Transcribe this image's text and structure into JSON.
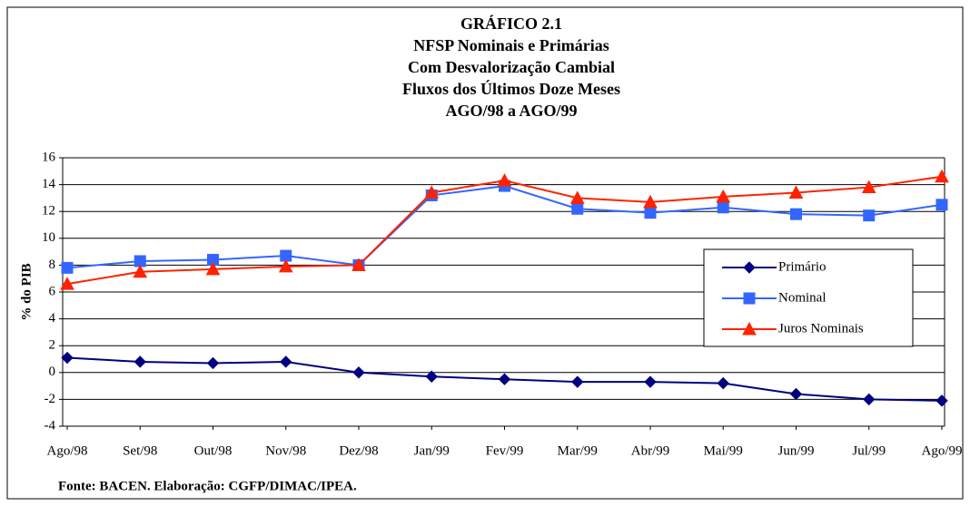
{
  "chart_data": {
    "type": "line",
    "title": [
      "GRÁFICO 2.1",
      "NFSP Nominais e Primárias",
      "Com Desvalorização Cambial",
      "Fluxos dos Últimos Doze Meses",
      "AGO/98 a AGO/99"
    ],
    "y_label": "% do PIB",
    "source": "Fonte: BACEN. Elaboração: CGFP/DIMAC/IPEA.",
    "categories": [
      "Ago/98",
      "Set/98",
      "Out/98",
      "Nov/98",
      "Dez/98",
      "Jan/99",
      "Fev/99",
      "Mar/99",
      "Abr/99",
      "Mai/99",
      "Jun/99",
      "Jul/99",
      "Ago/99"
    ],
    "series": [
      {
        "name": "Primário",
        "color": "#000080",
        "marker": "diamond",
        "values": [
          1.1,
          0.8,
          0.7,
          0.8,
          0.0,
          -0.3,
          -0.5,
          -0.7,
          -0.7,
          -0.8,
          -1.6,
          -2.0,
          -2.1
        ]
      },
      {
        "name": "Nominal",
        "color": "#3366ff",
        "marker": "square",
        "values": [
          7.8,
          8.3,
          8.4,
          8.7,
          8.0,
          13.2,
          13.9,
          12.2,
          11.9,
          12.3,
          11.8,
          11.7,
          12.5
        ]
      },
      {
        "name": "Juros Nominais",
        "color": "#ff2200",
        "marker": "triangle",
        "values": [
          6.6,
          7.5,
          7.7,
          7.9,
          8.0,
          13.4,
          14.3,
          13.0,
          12.7,
          13.1,
          13.4,
          13.8,
          14.6
        ]
      }
    ],
    "ylim": [
      -4,
      16
    ],
    "yticks": [
      -4,
      -2,
      0,
      2,
      4,
      6,
      8,
      10,
      12,
      14,
      16
    ],
    "grid": true,
    "legend": "right"
  }
}
